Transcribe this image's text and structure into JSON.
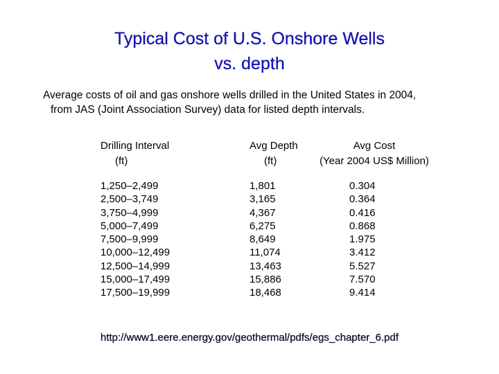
{
  "title": {
    "line1": "Typical Cost of U.S. Onshore Wells",
    "line2": "vs. depth",
    "color": "#1414b4"
  },
  "subtitle": {
    "line1": "Average costs of oil and gas onshore wells drilled in the United States in 2004,",
    "line2": "from JAS (Joint Association Survey) data for listed depth intervals."
  },
  "table": {
    "headers": {
      "interval": {
        "line1": "Drilling Interval",
        "line2": "(ft)"
      },
      "depth": {
        "line1": "Avg Depth",
        "line2": "(ft)"
      },
      "cost": {
        "line1": "Avg Cost",
        "line2": "(Year 2004 US$ Million)"
      }
    },
    "rows": [
      {
        "interval": "1,250–2,499",
        "depth": "1,801",
        "cost": "0.304"
      },
      {
        "interval": "2,500–3,749",
        "depth": "3,165",
        "cost": "0.364"
      },
      {
        "interval": "3,750–4,999",
        "depth": "4,367",
        "cost": "0.416"
      },
      {
        "interval": "5,000–7,499",
        "depth": "6,275",
        "cost": "0.868"
      },
      {
        "interval": "7,500–9,999",
        "depth": "8,649",
        "cost": "1.975"
      },
      {
        "interval": "10,000–12,499",
        "depth": "11,074",
        "cost": "3.412"
      },
      {
        "interval": "12,500–14,999",
        "depth": "13,463",
        "cost": "5.527"
      },
      {
        "interval": "15,000–17,499",
        "depth": "15,886",
        "cost": "7.570"
      },
      {
        "interval": "17,500–19,999",
        "depth": "18,468",
        "cost": "9.414"
      }
    ]
  },
  "source": {
    "url": "http://www1.eere.energy.gov/geothermal/pdfs/egs_chapter_6.pdf"
  }
}
